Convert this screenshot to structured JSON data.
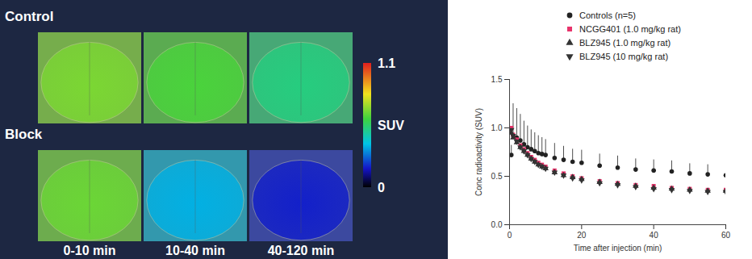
{
  "images": {
    "rows": [
      {
        "label": "Control",
        "suv": [
          0.68,
          0.62,
          0.52
        ]
      },
      {
        "label": "Block",
        "suv": [
          0.66,
          0.36,
          0.18
        ]
      }
    ],
    "columns": [
      "0-10 min",
      "10-40 min",
      "40-120 min"
    ],
    "colorbar": {
      "label": "SUV",
      "range": [
        0,
        1.1
      ],
      "ticks": [
        0,
        1.1
      ]
    }
  },
  "chart_data": {
    "type": "scatter",
    "x_label": "Time after injection (min)",
    "y_label": "Conc radioactivity (SUV)",
    "x": [
      0.5,
      1,
      2,
      3,
      4,
      5,
      6,
      7,
      8,
      9,
      10,
      12.5,
      15,
      17.5,
      20,
      25,
      30,
      35,
      40,
      45,
      50,
      55,
      60
    ],
    "series": [
      {
        "name": "Controls (n=5)",
        "color": "#222222",
        "marker": "circle",
        "values": [
          0.72,
          0.92,
          0.9,
          0.87,
          0.83,
          0.8,
          0.78,
          0.76,
          0.74,
          0.73,
          0.72,
          0.69,
          0.67,
          0.65,
          0.64,
          0.61,
          0.59,
          0.57,
          0.56,
          0.55,
          0.53,
          0.52,
          0.51
        ],
        "errors": [
          0.1,
          0.33,
          0.3,
          0.27,
          0.24,
          0.22,
          0.2,
          0.19,
          0.18,
          0.17,
          0.16,
          0.15,
          0.14,
          0.13,
          0.13,
          0.12,
          0.12,
          0.11,
          0.11,
          0.11,
          0.1,
          0.1,
          0.1
        ]
      },
      {
        "name": "NCGG401 (1.0 mg/kg rat)",
        "color": "#e8336b",
        "marker": "square",
        "values": [
          1.0,
          0.93,
          0.88,
          0.82,
          0.78,
          0.74,
          0.7,
          0.67,
          0.64,
          0.62,
          0.6,
          0.56,
          0.53,
          0.5,
          0.48,
          0.45,
          0.43,
          0.41,
          0.4,
          0.38,
          0.37,
          0.36,
          0.36
        ]
      },
      {
        "name": "BLZ945 (1.0 mg/kg rat)",
        "color": "#333333",
        "marker": "triangle",
        "values": [
          0.95,
          0.9,
          0.85,
          0.8,
          0.76,
          0.72,
          0.68,
          0.65,
          0.62,
          0.6,
          0.58,
          0.54,
          0.51,
          0.49,
          0.47,
          0.44,
          0.42,
          0.4,
          0.38,
          0.37,
          0.36,
          0.35,
          0.35
        ]
      },
      {
        "name": "BLZ945 (10 mg/kg rat)",
        "color": "#333333",
        "marker": "triangle-down",
        "values": [
          0.98,
          0.92,
          0.86,
          0.8,
          0.76,
          0.72,
          0.68,
          0.65,
          0.62,
          0.6,
          0.58,
          0.54,
          0.51,
          0.48,
          0.46,
          0.43,
          0.41,
          0.39,
          0.37,
          0.36,
          0.35,
          0.34,
          0.34
        ]
      }
    ],
    "xlim": [
      0,
      60
    ],
    "xticks": [
      0,
      20,
      40,
      60
    ],
    "ylim": [
      0,
      1.5
    ],
    "yticks": [
      {
        "value": 0,
        "label": "0.0"
      },
      {
        "value": 0.5,
        "label": "0.5"
      },
      {
        "value": 1,
        "label": "1.0"
      },
      {
        "value": 1.5,
        "label": "1.5"
      }
    ],
    "grid": false,
    "legend": "top-right"
  }
}
